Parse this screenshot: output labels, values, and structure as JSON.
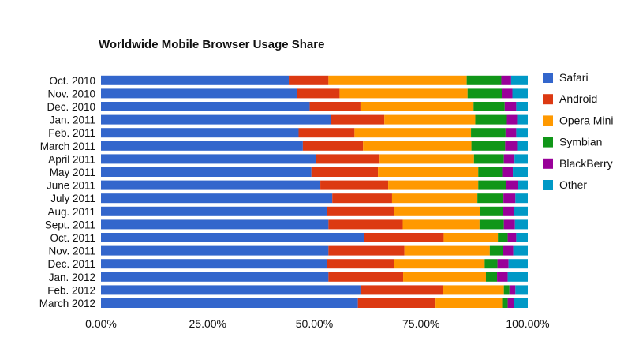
{
  "colors": {
    "Safari": "#3366cc",
    "Android": "#dc3912",
    "Opera Mini": "#ff9900",
    "Symbian": "#109618",
    "BlackBerry": "#990099",
    "Other": "#0099c6"
  },
  "chart_data": {
    "type": "bar",
    "orientation": "horizontal",
    "stacked": true,
    "title": "Worldwide Mobile Browser Usage Share",
    "xlabel": "",
    "ylabel": "",
    "xlim": [
      0,
      100
    ],
    "x_ticks": [
      "0.00%",
      "25.00%",
      "50.00%",
      "75.00%",
      "100.00%"
    ],
    "grid": false,
    "legend_position": "right",
    "categories": [
      "Oct. 2010",
      "Nov. 2010",
      "Dec. 2010",
      "Jan. 2011",
      "Feb. 2011",
      "March 2011",
      "April 2011",
      "May 2011",
      "June 2011",
      "July 2011",
      "Aug. 2011",
      "Sept. 2011",
      "Oct. 2011",
      "Nov. 2011",
      "Dec. 2011",
      "Jan. 2012",
      "Feb. 2012",
      "March 2012"
    ],
    "series": [
      {
        "name": "Safari",
        "values": [
          44.0,
          45.9,
          48.9,
          53.8,
          46.3,
          47.3,
          50.4,
          49.3,
          51.4,
          54.2,
          52.9,
          53.3,
          61.7,
          53.3,
          53.0,
          53.3,
          60.8,
          60.2
        ]
      },
      {
        "name": "Android",
        "values": [
          9.3,
          10.0,
          11.9,
          12.6,
          13.1,
          14.1,
          14.9,
          15.6,
          15.9,
          14.0,
          15.8,
          17.4,
          18.6,
          17.8,
          15.7,
          17.5,
          19.4,
          18.2
        ]
      },
      {
        "name": "Opera Mini",
        "values": [
          32.4,
          30.0,
          26.5,
          21.3,
          27.3,
          25.4,
          22.1,
          23.5,
          21.1,
          20.0,
          20.2,
          18.0,
          12.7,
          20.0,
          21.2,
          19.4,
          14.2,
          15.6
        ]
      },
      {
        "name": "Symbian",
        "values": [
          8.1,
          8.0,
          7.3,
          7.4,
          8.1,
          7.9,
          7.0,
          5.6,
          6.5,
          6.1,
          5.2,
          5.7,
          2.3,
          3.0,
          3.0,
          2.6,
          1.3,
          1.3
        ]
      },
      {
        "name": "BlackBerry",
        "values": [
          2.3,
          2.5,
          2.7,
          2.4,
          2.5,
          2.8,
          2.5,
          2.5,
          2.8,
          2.8,
          2.6,
          2.6,
          2.0,
          2.5,
          2.6,
          2.5,
          1.4,
          1.4
        ]
      },
      {
        "name": "Other",
        "values": [
          3.9,
          3.6,
          2.7,
          2.5,
          2.7,
          2.5,
          3.1,
          3.5,
          2.3,
          2.9,
          3.3,
          3.0,
          2.7,
          3.4,
          4.5,
          4.7,
          2.9,
          3.3
        ]
      }
    ]
  }
}
